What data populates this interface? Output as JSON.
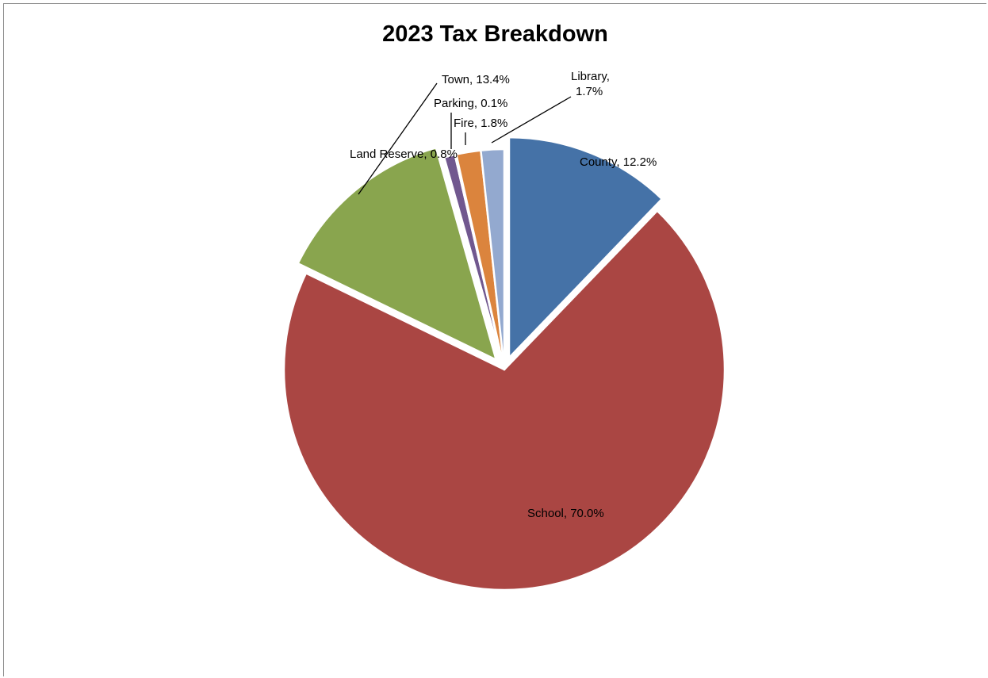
{
  "chart_data": {
    "type": "pie",
    "title": "2023 Tax Breakdown",
    "slices": [
      {
        "name": "County",
        "value": 12.2,
        "label": "County, 12.2%",
        "color": "#4572a7",
        "exploded": true
      },
      {
        "name": "School",
        "value": 70.0,
        "label": "School, 70.0%",
        "color": "#aa4643",
        "exploded": false
      },
      {
        "name": "Town",
        "value": 13.4,
        "label": "Town, 13.4%",
        "color": "#89a54e",
        "exploded": true
      },
      {
        "name": "Land Reserve",
        "value": 0.8,
        "label": "Land Reserve, 0.8%",
        "color": "#71588f",
        "exploded": false
      },
      {
        "name": "Parking",
        "value": 0.1,
        "label": "Parking, 0.1%",
        "color": "#4198af",
        "exploded": false
      },
      {
        "name": "Fire",
        "value": 1.8,
        "label": "Fire, 1.8%",
        "color": "#db843d",
        "exploded": false
      },
      {
        "name": "Library",
        "value": 1.7,
        "label_lines": [
          "Library,",
          "1.7%"
        ],
        "color": "#93a9cf",
        "exploded": false
      }
    ]
  }
}
